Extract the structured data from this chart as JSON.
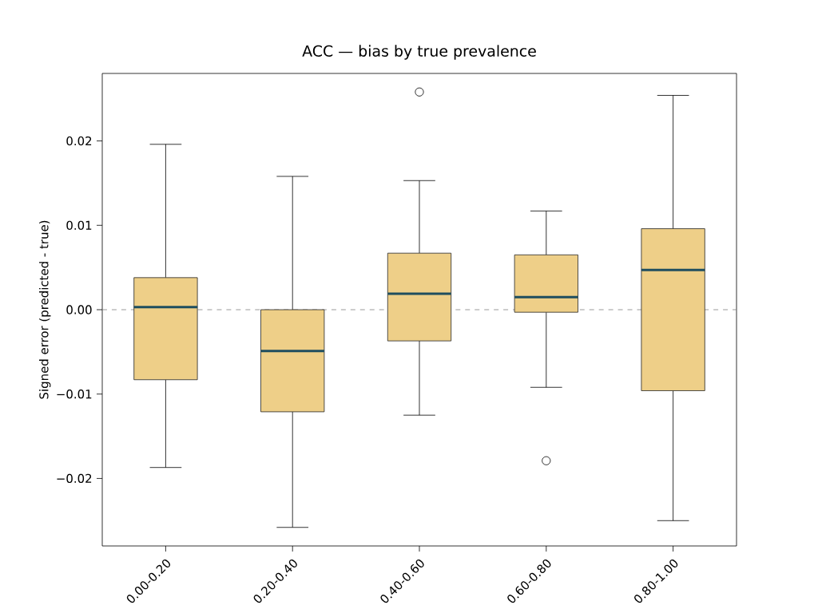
{
  "chart_data": {
    "type": "box",
    "title": "ACC — bias by true prevalence",
    "ylabel": "Signed error (predicted - true)",
    "categories": [
      "0.00-0.20",
      "0.20-0.40",
      "0.40-0.60",
      "0.60-0.80",
      "0.80-1.00"
    ],
    "boxes": [
      {
        "low": -0.0187,
        "q1": -0.0083,
        "median": 0.0003,
        "q3": 0.0038,
        "high": 0.0196
      },
      {
        "low": -0.0258,
        "q1": -0.0121,
        "median": -0.0049,
        "q3": 0.0,
        "high": 0.0158
      },
      {
        "low": -0.0125,
        "q1": -0.0037,
        "median": 0.0019,
        "q3": 0.0067,
        "high": 0.0153,
        "outliers": [
          0.0258
        ]
      },
      {
        "low": -0.0092,
        "q1": -0.0003,
        "median": 0.0015,
        "q3": 0.0065,
        "high": 0.0117,
        "outliers": [
          -0.0179
        ]
      },
      {
        "low": -0.025,
        "q1": -0.0096,
        "median": 0.0047,
        "q3": 0.0096,
        "high": 0.0254
      }
    ],
    "color": "#eecf88",
    "ylim": [
      -0.028,
      0.028
    ],
    "yticks": [
      {
        "value": -0.02,
        "label": "−0.02"
      },
      {
        "value": -0.01,
        "label": "−0.01"
      },
      {
        "value": 0.0,
        "label": "0.00"
      },
      {
        "value": 0.01,
        "label": "0.01"
      },
      {
        "value": 0.02,
        "label": "0.02"
      }
    ],
    "ref_lines": [
      {
        "axis": "y",
        "value": 0.0,
        "color": "#808080",
        "line_style": "dashed"
      }
    ],
    "grid": false
  }
}
